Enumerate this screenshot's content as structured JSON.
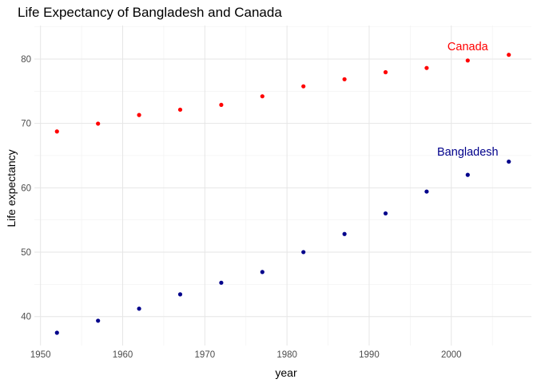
{
  "chart_data": {
    "type": "scatter",
    "title": "Life Expectancy of Bangladesh and Canada",
    "xlabel": "year",
    "ylabel": "Life expectancy",
    "xlim": [
      1949.25,
      2009.75
    ],
    "ylim": [
      35.5,
      85.2
    ],
    "xticks": [
      1950,
      1960,
      1970,
      1980,
      1990,
      2000
    ],
    "yticks": [
      40,
      50,
      60,
      70,
      80
    ],
    "grid": true,
    "legend": "none",
    "series": [
      {
        "name": "Canada",
        "color": "#ff0000",
        "x": [
          1952,
          1957,
          1962,
          1967,
          1972,
          1977,
          1982,
          1987,
          1992,
          1997,
          2002,
          2007
        ],
        "y": [
          68.75,
          69.96,
          71.3,
          72.13,
          72.88,
          74.21,
          75.76,
          76.86,
          77.95,
          78.61,
          79.77,
          80.65
        ]
      },
      {
        "name": "Bangladesh",
        "color": "#00008b",
        "x": [
          1952,
          1957,
          1962,
          1967,
          1972,
          1977,
          1982,
          1987,
          1992,
          1997,
          2002,
          2007
        ],
        "y": [
          37.48,
          39.35,
          41.22,
          43.45,
          45.25,
          46.92,
          50.01,
          52.82,
          56.02,
          59.41,
          62.01,
          64.06
        ]
      }
    ],
    "annotations": [
      {
        "text": "Canada",
        "x": 2002,
        "y": 82.0,
        "color": "#ff0000"
      },
      {
        "text": "Bangladesh",
        "x": 2002,
        "y": 65.6,
        "color": "#00008b"
      }
    ]
  }
}
